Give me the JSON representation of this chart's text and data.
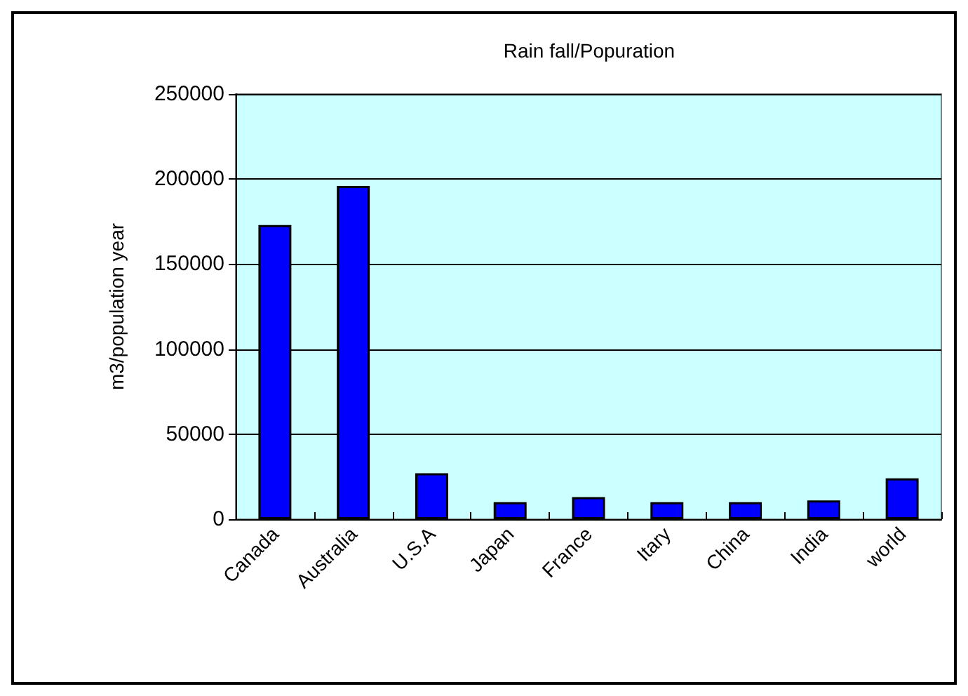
{
  "chart_data": {
    "type": "bar",
    "title": "Rain fall/Popuration",
    "ylabel": "m3/population year",
    "categories": [
      "Canada",
      "Australia",
      "U.S.A",
      "Japan",
      "France",
      "Itary",
      "China",
      "India",
      "world"
    ],
    "values": [
      173000,
      196000,
      27000,
      10000,
      13000,
      10000,
      10000,
      11000,
      24000
    ],
    "color": "#0000ff",
    "ylim": [
      0,
      250000
    ],
    "yticks": [
      0,
      50000,
      100000,
      150000,
      200000,
      250000
    ],
    "grid": "y"
  }
}
